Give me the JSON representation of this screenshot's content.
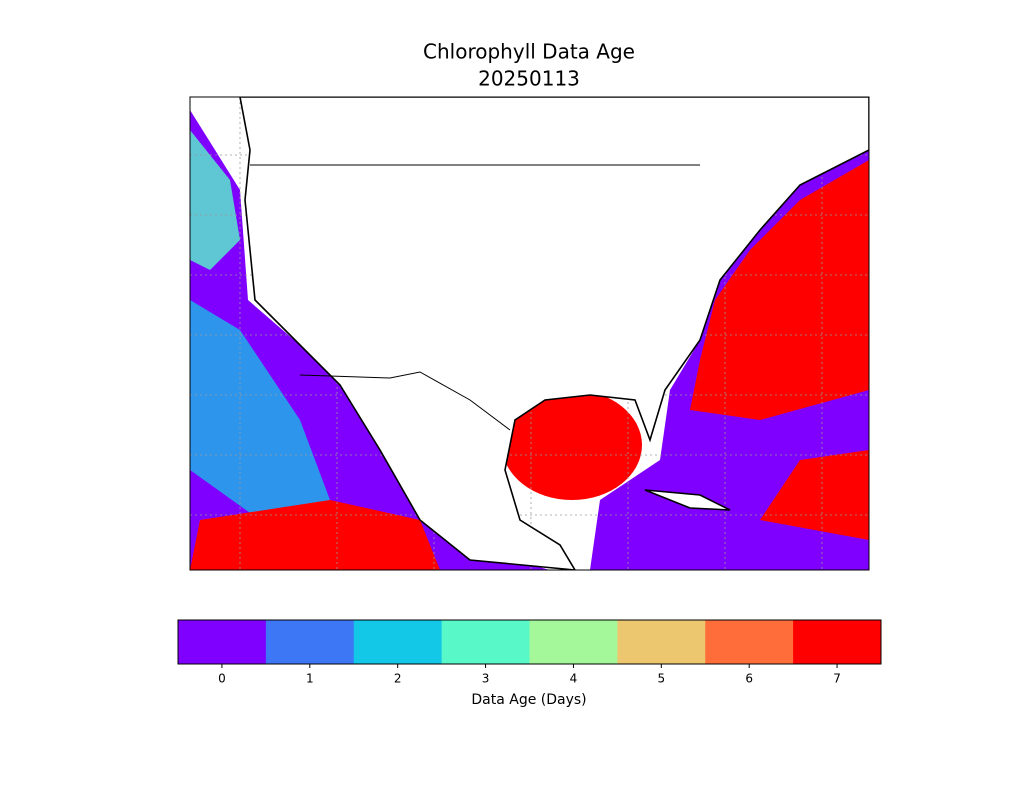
{
  "map": {
    "title": [
      "Chlorophyll Data Age",
      "20250113"
    ],
    "colorbar": {
      "label": "Data Age (Days)",
      "ticks": [
        0,
        1,
        2,
        3,
        4,
        5,
        6,
        7
      ],
      "range": [
        -0.5,
        7.5
      ],
      "colors": [
        "#7f00ff",
        "#3e77f6",
        "#12c8e6",
        "#58f8c9",
        "#a4f899",
        "#ecc76f",
        "#ff6e3a",
        "#ff0000"
      ]
    }
  }
}
